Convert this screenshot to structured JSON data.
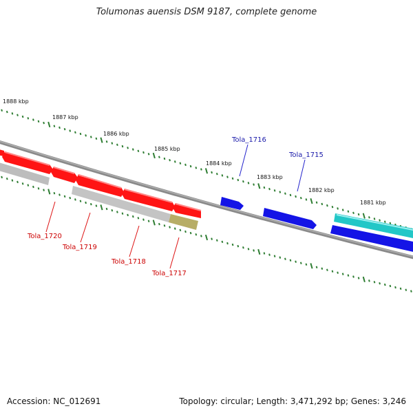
{
  "title": "Tolumonas auensis DSM 9187, complete genome",
  "footer": {
    "accession": "Accession: NC_012691",
    "summary": "Topology: circular; Length: 3,471,292 bp; Genes: 3,246"
  },
  "colors": {
    "backbone": "#7a7a7a",
    "tick": "#2e7d32",
    "forward_gene": "#ff1414",
    "forward_label": "#cc0000",
    "reverse_gene": "#1010e0",
    "reverse_label": "#1a1aaa",
    "pseudo_gene": "#b8b8b8",
    "rna_gene": "#b5aa60",
    "cyan_gene": "#22c7c7"
  },
  "scale_labels": [
    "1888 kbp",
    "1887 kbp",
    "1886 kbp",
    "1885 kbp",
    "1884 kbp",
    "1883 kbp",
    "1882 kbp",
    "1881 kbp"
  ],
  "gene_labels": {
    "forward": [
      "Tola_1720",
      "Tola_1719",
      "Tola_1718",
      "Tola_1717"
    ],
    "reverse": [
      "Tola_1716",
      "Tola_1715"
    ]
  }
}
